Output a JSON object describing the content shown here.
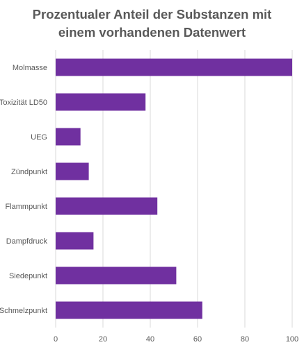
{
  "chart_data": {
    "type": "bar",
    "orientation": "horizontal",
    "title_lines": [
      "Prozentualer Anteil der Substanzen mit",
      "einem vorhandenen Datenwert"
    ],
    "categories": [
      "Molmasse",
      "Toxizität LD50",
      "UEG",
      "Zündpunkt",
      "Flammpunkt",
      "Dampfdruck",
      "Siedepunkt",
      "Schmelzpunkt"
    ],
    "values": [
      100,
      38,
      10.5,
      14,
      43,
      16,
      51,
      62
    ],
    "xlim": [
      0,
      100
    ],
    "xticks": [
      0,
      20,
      40,
      60,
      80,
      100
    ],
    "grid": "vertical",
    "legend": "none",
    "bar_color": "#7030A0",
    "grid_color": "#d9d9d9",
    "text_color": "#595959"
  }
}
